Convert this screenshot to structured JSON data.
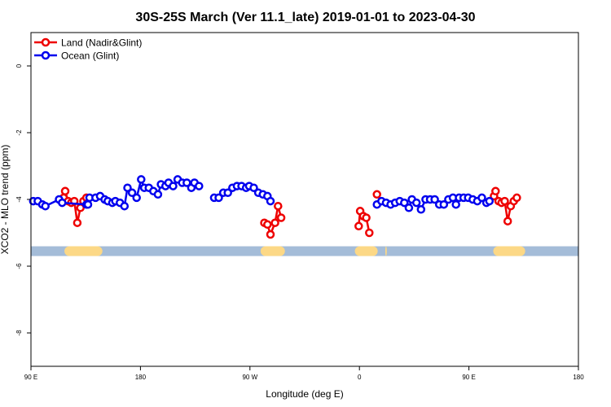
{
  "chart_data": {
    "type": "line",
    "title": "30S-25S March (Ver 11.1_late)   2019-01-01 to 2023-04-30",
    "xlabel": "Longitude (deg E)",
    "ylabel": "XCO2 - MLO trend (ppm)",
    "xlim": [
      90,
      450
    ],
    "ylim": [
      -9,
      1
    ],
    "x_ticks": [
      {
        "value": 90,
        "label": "90 E"
      },
      {
        "value": 162,
        "label": "180"
      },
      {
        "value": 234,
        "label": "90 W"
      },
      {
        "value": 306,
        "label": "0"
      },
      {
        "value": 378,
        "label": "90 E"
      },
      {
        "value": 450,
        "label": "180"
      }
    ],
    "y_ticks": [
      {
        "value": 0,
        "label": "0"
      },
      {
        "value": -2,
        "label": "-2"
      },
      {
        "value": -4,
        "label": "-4"
      },
      {
        "value": -6,
        "label": "-6"
      },
      {
        "value": -8,
        "label": "-8"
      }
    ],
    "grid": false,
    "legend_position": "top-left",
    "series": [
      {
        "name": "Land (Nadir&Glint)",
        "color": "#ee0000",
        "segments": [
          [
            [
              111.5,
              -3.95
            ],
            [
              112.5,
              -3.75
            ],
            [
              114.5,
              -4.05
            ],
            [
              116.5,
              -4.1
            ],
            [
              118.5,
              -4.05
            ],
            [
              120.5,
              -4.7
            ],
            [
              122.5,
              -4.25
            ],
            [
              124.5,
              -4.05
            ],
            [
              126.5,
              -3.95
            ]
          ],
          [
            [
              243.5,
              -4.7
            ],
            [
              245.5,
              -4.75
            ],
            [
              247.5,
              -5.05
            ],
            [
              250.5,
              -4.7
            ],
            [
              252.5,
              -4.2
            ],
            [
              254.5,
              -4.55
            ]
          ],
          [
            [
              305.5,
              -4.8
            ],
            [
              306.5,
              -4.35
            ],
            [
              308.5,
              -4.5
            ],
            [
              310.5,
              -4.55
            ],
            [
              312.5,
              -5.0
            ]
          ],
          [
            [
              317.5,
              -3.85
            ]
          ],
          [
            [
              394.5,
              -3.9
            ],
            [
              395.5,
              -3.75
            ],
            [
              397.5,
              -4.05
            ],
            [
              399.5,
              -4.1
            ],
            [
              401.5,
              -4.05
            ],
            [
              403.5,
              -4.65
            ],
            [
              405.5,
              -4.2
            ],
            [
              407.5,
              -4.05
            ],
            [
              409.5,
              -3.95
            ]
          ]
        ]
      },
      {
        "name": "Ocean (Glint)",
        "color": "#0000ee",
        "segments": [
          [
            [
              91.5,
              -4.05
            ],
            [
              94.5,
              -4.05
            ],
            [
              97.5,
              -4.15
            ],
            [
              99.5,
              -4.2
            ],
            [
              108.5,
              -4.0
            ],
            [
              110.5,
              -4.1
            ],
            [
              126.5,
              -4.15
            ],
            [
              127.5,
              -4.15
            ],
            [
              128.5,
              -3.95
            ],
            [
              132.5,
              -3.95
            ],
            [
              135.5,
              -3.9
            ],
            [
              138.5,
              -4.0
            ],
            [
              140.5,
              -4.05
            ],
            [
              143.5,
              -4.1
            ],
            [
              145.5,
              -4.05
            ],
            [
              148.5,
              -4.1
            ],
            [
              151.5,
              -4.2
            ],
            [
              153.5,
              -3.65
            ],
            [
              156.5,
              -3.8
            ],
            [
              159.5,
              -3.95
            ],
            [
              162.5,
              -3.4
            ],
            [
              164.5,
              -3.65
            ],
            [
              167.5,
              -3.65
            ],
            [
              170.5,
              -3.75
            ],
            [
              173.5,
              -3.85
            ],
            [
              175.5,
              -3.55
            ],
            [
              178.5,
              -3.6
            ],
            [
              180.5,
              -3.5
            ],
            [
              183.5,
              -3.6
            ],
            [
              186.5,
              -3.4
            ],
            [
              189.5,
              -3.5
            ],
            [
              192.5,
              -3.5
            ],
            [
              195.5,
              -3.65
            ],
            [
              197.5,
              -3.5
            ],
            [
              200.5,
              -3.6
            ]
          ],
          [
            [
              210.5,
              -3.95
            ],
            [
              213.5,
              -3.95
            ],
            [
              216.5,
              -3.8
            ],
            [
              219.5,
              -3.8
            ],
            [
              222.5,
              -3.65
            ],
            [
              225.5,
              -3.6
            ],
            [
              228.5,
              -3.6
            ],
            [
              231.5,
              -3.65
            ],
            [
              233.5,
              -3.6
            ],
            [
              236.5,
              -3.65
            ],
            [
              239.5,
              -3.8
            ],
            [
              242.5,
              -3.85
            ],
            [
              245.5,
              -3.9
            ],
            [
              247.5,
              -4.05
            ]
          ],
          [
            [
              317.5,
              -4.15
            ],
            [
              320.5,
              -4.05
            ],
            [
              323.5,
              -4.1
            ],
            [
              326.5,
              -4.15
            ],
            [
              329.5,
              -4.1
            ],
            [
              332.5,
              -4.05
            ],
            [
              335.5,
              -4.1
            ],
            [
              338.5,
              -4.25
            ],
            [
              340.5,
              -4.0
            ],
            [
              343.5,
              -4.1
            ],
            [
              346.5,
              -4.3
            ],
            [
              349.5,
              -4.0
            ],
            [
              352.5,
              -4.0
            ],
            [
              355.5,
              -4.0
            ],
            [
              358.5,
              -4.15
            ],
            [
              361.5,
              -4.15
            ],
            [
              364.5,
              -4.0
            ],
            [
              367.5,
              -3.95
            ],
            [
              369.5,
              -4.15
            ],
            [
              371.5,
              -3.95
            ],
            [
              374.5,
              -3.95
            ],
            [
              377.5,
              -3.95
            ],
            [
              380.5,
              -4.0
            ],
            [
              383.5,
              -4.05
            ],
            [
              386.5,
              -3.95
            ],
            [
              389.5,
              -4.1
            ],
            [
              391.5,
              -4.05
            ]
          ]
        ]
      }
    ],
    "land_mask": {
      "ocean_color": "#a4bcd8",
      "land_color": "#fcd886",
      "y": -5.55,
      "land_ranges": [
        [
          112,
          137
        ],
        [
          241,
          257
        ],
        [
          303,
          318
        ],
        [
          323,
          324
        ],
        [
          394,
          415
        ]
      ]
    }
  }
}
